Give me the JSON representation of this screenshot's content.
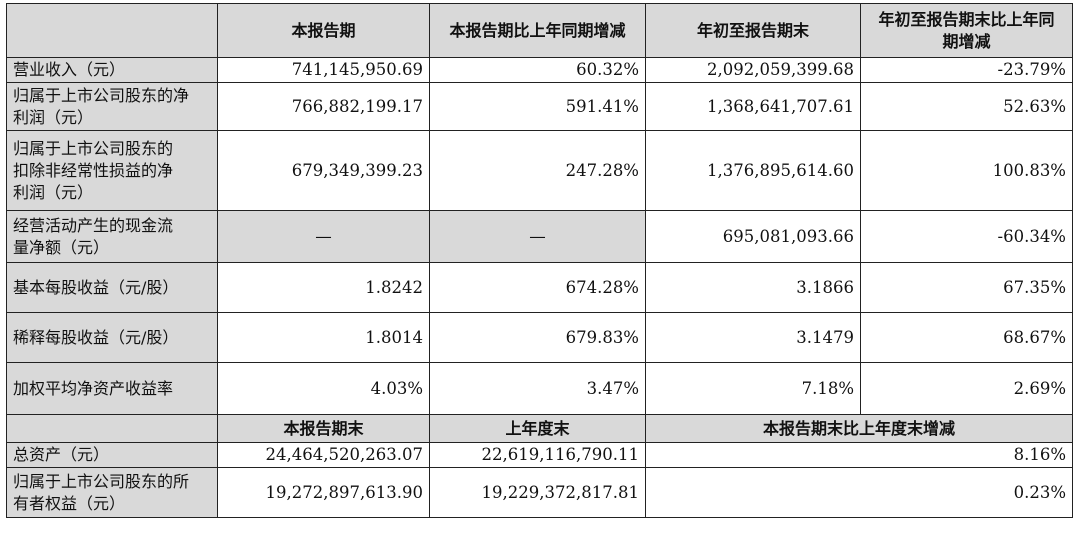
{
  "header": {
    "corner": "",
    "col1": "本报告期",
    "col2": "本报告期比上年同期增减",
    "col3": "年初至报告期末",
    "col4": "年初至报告期末比上年同期增减"
  },
  "rows": [
    {
      "label": "营业收入（元）",
      "c1": "741,145,950.69",
      "c2": "60.32%",
      "c3": "2,092,059,399.68",
      "c4": "-23.79%"
    },
    {
      "label": "归属于上市公司股东的净利润（元）",
      "c1": "766,882,199.17",
      "c2": "591.41%",
      "c3": "1,368,641,707.61",
      "c4": "52.63%"
    },
    {
      "label": "归属于上市公司股东的扣除非经常性损益的净利润（元）",
      "c1": "679,349,399.23",
      "c2": "247.28%",
      "c3": "1,376,895,614.60",
      "c4": "100.83%"
    },
    {
      "label": "经营活动产生的现金流量净额（元）",
      "c1": "—",
      "c2": "—",
      "c3": "695,081,093.66",
      "c4": "-60.34%"
    },
    {
      "label": "基本每股收益（元/股）",
      "c1": "1.8242",
      "c2": "674.28%",
      "c3": "3.1866",
      "c4": "67.35%"
    },
    {
      "label": "稀释每股收益（元/股）",
      "c1": "1.8014",
      "c2": "679.83%",
      "c3": "3.1479",
      "c4": "68.67%"
    },
    {
      "label": "加权平均净资产收益率",
      "c1": "4.03%",
      "c2": "3.47%",
      "c3": "7.18%",
      "c4": "2.69%"
    }
  ],
  "header2": {
    "col1": "本报告期末",
    "col2": "上年度末",
    "col3": "本报告期末比上年度末增减"
  },
  "rows2": [
    {
      "label": "总资产（元）",
      "c1": "24,464,520,263.07",
      "c2": "22,619,116,790.11",
      "c3": "8.16%"
    },
    {
      "label": "归属于上市公司股东的所有者权益（元）",
      "c1": "19,272,897,613.90",
      "c2": "19,229,372,817.81",
      "c3": "0.23%"
    }
  ]
}
